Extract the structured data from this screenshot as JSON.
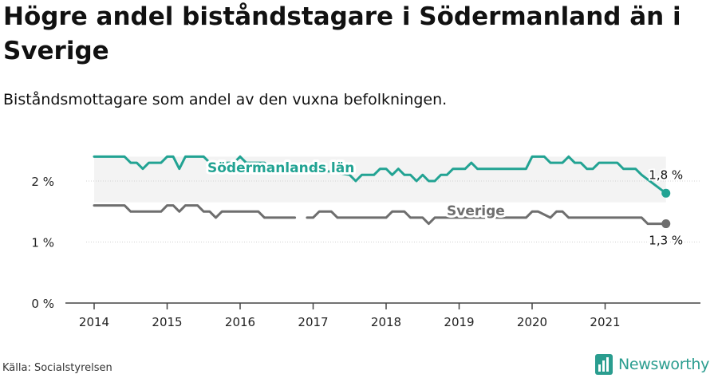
{
  "title": "Högre andel biståndstagare i Södermanland än i Sverige",
  "subtitle": "Biståndsmottagare som andel av den vuxna befolkningen.",
  "source": "Källa: Socialstyrelsen",
  "brand": "Newsworthy",
  "colors": {
    "lan": "#22a393",
    "sverige": "#6e6e6e",
    "band": "#f3f3f3",
    "axis": "#444444",
    "brand": "#2a9d8f"
  },
  "chart_data": {
    "type": "line",
    "x_range": [
      "2014-01",
      "2021-11"
    ],
    "ylim": [
      0,
      2.5
    ],
    "y_ticks": [
      {
        "value": 0,
        "label": "0 %"
      },
      {
        "value": 1,
        "label": "1 %"
      },
      {
        "value": 2,
        "label": "2 %"
      }
    ],
    "x_ticks": [
      "2014",
      "2015",
      "2016",
      "2017",
      "2018",
      "2019",
      "2020",
      "2021"
    ],
    "series": [
      {
        "name": "Södermanlands län",
        "end_label": "1,8 %",
        "points": [
          [
            "2014-01",
            2.4
          ],
          [
            "2014-06",
            2.4
          ],
          [
            "2014-07",
            2.3
          ],
          [
            "2014-08",
            2.3
          ],
          [
            "2014-09",
            2.2
          ],
          [
            "2014-10",
            2.3
          ],
          [
            "2014-11",
            2.3
          ],
          [
            "2014-12",
            2.3
          ],
          [
            "2015-01",
            2.4
          ],
          [
            "2015-02",
            2.4
          ],
          [
            "2015-03",
            2.2
          ],
          [
            "2015-04",
            2.4
          ],
          [
            "2015-07",
            2.4
          ],
          [
            "2015-08",
            2.3
          ],
          [
            "2015-09",
            2.2
          ],
          [
            "2015-10",
            2.3
          ],
          [
            "2015-12",
            2.3
          ],
          [
            "2016-01",
            2.4
          ],
          [
            "2016-02",
            2.3
          ],
          [
            "2016-05",
            2.3
          ],
          [
            "2016-06",
            2.2
          ],
          [
            "2016-12",
            2.2
          ],
          [
            "2017-01",
            2.2
          ],
          [
            "2017-07",
            2.1
          ],
          [
            "2017-08",
            2.0
          ],
          [
            "2017-09",
            2.1
          ],
          [
            "2017-11",
            2.1
          ],
          [
            "2017-12",
            2.2
          ],
          [
            "2018-01",
            2.2
          ],
          [
            "2018-02",
            2.1
          ],
          [
            "2018-03",
            2.2
          ],
          [
            "2018-04",
            2.1
          ],
          [
            "2018-05",
            2.1
          ],
          [
            "2018-06",
            2.0
          ],
          [
            "2018-07",
            2.1
          ],
          [
            "2018-08",
            2.0
          ],
          [
            "2018-09",
            2.0
          ],
          [
            "2018-10",
            2.1
          ],
          [
            "2018-11",
            2.1
          ],
          [
            "2018-12",
            2.2
          ],
          [
            "2019-02",
            2.2
          ],
          [
            "2019-03",
            2.3
          ],
          [
            "2019-04",
            2.2
          ],
          [
            "2019-12",
            2.2
          ],
          [
            "2020-01",
            2.4
          ],
          [
            "2020-03",
            2.4
          ],
          [
            "2020-04",
            2.3
          ],
          [
            "2020-06",
            2.3
          ],
          [
            "2020-07",
            2.4
          ],
          [
            "2020-08",
            2.3
          ],
          [
            "2020-09",
            2.3
          ],
          [
            "2020-10",
            2.2
          ],
          [
            "2020-11",
            2.2
          ],
          [
            "2020-12",
            2.3
          ],
          [
            "2021-03",
            2.3
          ],
          [
            "2021-04",
            2.2
          ],
          [
            "2021-06",
            2.2
          ],
          [
            "2021-07",
            2.1
          ],
          [
            "2021-11",
            1.8
          ]
        ]
      },
      {
        "name": "Sverige",
        "end_label": "1,3 %",
        "points": [
          [
            "2014-01",
            1.6
          ],
          [
            "2014-06",
            1.6
          ],
          [
            "2014-07",
            1.5
          ],
          [
            "2014-12",
            1.5
          ],
          [
            "2015-01",
            1.6
          ],
          [
            "2015-02",
            1.6
          ],
          [
            "2015-03",
            1.5
          ],
          [
            "2015-04",
            1.6
          ],
          [
            "2015-06",
            1.6
          ],
          [
            "2015-07",
            1.5
          ],
          [
            "2015-08",
            1.5
          ],
          [
            "2015-09",
            1.4
          ],
          [
            "2015-10",
            1.5
          ],
          [
            "2016-04",
            1.5
          ],
          [
            "2016-05",
            1.4
          ],
          [
            "2016-10",
            1.4
          ],
          null,
          [
            "2016-12",
            1.4
          ],
          [
            "2017-01",
            1.4
          ],
          [
            "2017-02",
            1.5
          ],
          [
            "2017-04",
            1.5
          ],
          [
            "2017-05",
            1.4
          ],
          [
            "2018-01",
            1.4
          ],
          [
            "2018-02",
            1.5
          ],
          [
            "2018-04",
            1.5
          ],
          [
            "2018-05",
            1.4
          ],
          [
            "2018-07",
            1.4
          ],
          [
            "2018-08",
            1.3
          ],
          [
            "2018-09",
            1.4
          ],
          [
            "2019-12",
            1.4
          ],
          [
            "2020-01",
            1.5
          ],
          [
            "2020-02",
            1.5
          ],
          [
            "2020-04",
            1.4
          ],
          [
            "2020-05",
            1.5
          ],
          [
            "2020-06",
            1.5
          ],
          [
            "2020-07",
            1.4
          ],
          [
            "2021-07",
            1.4
          ],
          [
            "2021-08",
            1.3
          ],
          [
            "2021-11",
            1.3
          ]
        ]
      }
    ]
  }
}
